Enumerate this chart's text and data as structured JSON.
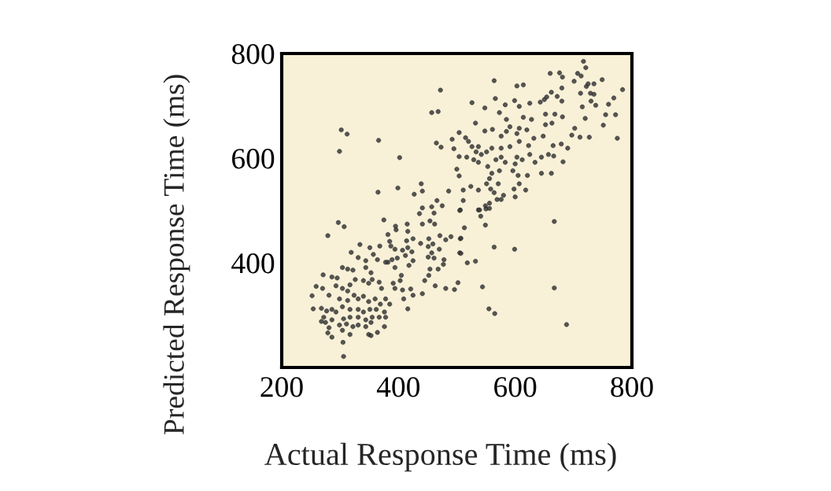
{
  "chart_data": {
    "type": "scatter",
    "xlabel": "Actual Response Time (ms)",
    "ylabel": "Predicted Response Time (ms)",
    "x": [
      472,
      457,
      468,
      302,
      312,
      299,
      366,
      402,
      465,
      473,
      492,
      495,
      504,
      504,
      500,
      504,
      439,
      441,
      427,
      399,
      365,
      486,
      466,
      475,
      457,
      441,
      717,
      721,
      660,
      676,
      681,
      707,
      713,
      701,
      749,
      735,
      722,
      725,
      784,
      564,
      603,
      614,
      680,
      712,
      729,
      735,
      730,
      738,
      769,
      760,
      715,
      755,
      772,
      751,
      775,
      720,
      526,
      566,
      548,
      583,
      599,
      607,
      625,
      643,
      650,
      654,
      662,
      672,
      680,
      573,
      585,
      614,
      628,
      652,
      668,
      681,
      652,
      663,
      532,
      548,
      561,
      585,
      591,
      607,
      620,
      576,
      603,
      632,
      648,
      702,
      697,
      711,
      727,
      515,
      520,
      526,
      537,
      533,
      542,
      551,
      560,
      576,
      591,
      607,
      623,
      517,
      529,
      537,
      511,
      524,
      537,
      553,
      560,
      556,
      551,
      558,
      564,
      569,
      571,
      573,
      583,
      576,
      567,
      596,
      600,
      603,
      612,
      605,
      607,
      598,
      600,
      618,
      621,
      625,
      634,
      645,
      657,
      666,
      645,
      662,
      682,
      690,
      679,
      665,
      580,
      576,
      556,
      549,
      537,
      511,
      506,
      436,
      461,
      441,
      454,
      462,
      375,
      297,
      307,
      279,
      395,
      415,
      416,
      396,
      382,
      385,
      387,
      394,
      407,
      412,
      398,
      389,
      382,
      394,
      425,
      418,
      425,
      414,
      416,
      423,
      438,
      452,
      451,
      459,
      471,
      481,
      490,
      470,
      457,
      451,
      461,
      478,
      477,
      468,
      454,
      452,
      445,
      506,
      505,
      463,
      481,
      496,
      502,
      334,
      351,
      368,
      319,
      331,
      344,
      357,
      364,
      378,
      304,
      313,
      322,
      344,
      353,
      271,
      286,
      295,
      293,
      259,
      270,
      252,
      281,
      304,
      317,
      326,
      340,
      349,
      355,
      367,
      371,
      391,
      403,
      405,
      394,
      407,
      421,
      425,
      441,
      409,
      416,
      313,
      324,
      331,
      340,
      349,
      360,
      369,
      378,
      385,
      313,
      299,
      304,
      317,
      331,
      340,
      351,
      362,
      376,
      378,
      367,
      355,
      344,
      331,
      317,
      306,
      293,
      286,
      277,
      268,
      254,
      268,
      275,
      286,
      299,
      311,
      322,
      331,
      344,
      353,
      281,
      279,
      286,
      304,
      317,
      349,
      353,
      364,
      376,
      305,
      306,
      272,
      505,
      539,
      550,
      556,
      541,
      549,
      513,
      507,
      507,
      518,
      532,
      564,
      599,
      667,
      544,
      667,
      555,
      565,
      688
    ],
    "values": [
      730,
      687,
      689,
      654,
      646,
      613,
      634,
      601,
      629,
      621,
      636,
      618,
      649,
      603,
      579,
      566,
      551,
      537,
      531,
      543,
      535,
      537,
      519,
      509,
      507,
      505,
      785,
      773,
      762,
      763,
      755,
      762,
      757,
      747,
      750,
      742,
      737,
      742,
      731,
      748,
      738,
      740,
      734,
      724,
      724,
      722,
      709,
      701,
      715,
      703,
      698,
      683,
      683,
      663,
      638,
      676,
      706,
      714,
      696,
      702,
      710,
      699,
      705,
      707,
      712,
      717,
      726,
      718,
      709,
      687,
      674,
      678,
      674,
      684,
      684,
      679,
      664,
      667,
      667,
      652,
      655,
      651,
      660,
      657,
      654,
      642,
      647,
      638,
      642,
      657,
      644,
      640,
      640,
      639,
      632,
      622,
      622,
      612,
      607,
      612,
      619,
      619,
      622,
      632,
      624,
      602,
      597,
      592,
      539,
      546,
      539,
      584,
      571,
      561,
      551,
      541,
      534,
      521,
      551,
      576,
      592,
      602,
      597,
      576,
      589,
      602,
      597,
      567,
      551,
      541,
      526,
      539,
      567,
      607,
      592,
      602,
      607,
      604,
      571,
      571,
      593,
      619,
      627,
      624,
      529,
      521,
      514,
      509,
      501,
      519,
      501,
      494,
      495,
      474,
      480,
      474,
      482,
      477,
      469,
      452,
      470,
      474,
      460,
      463,
      454,
      441,
      432,
      426,
      424,
      414,
      409,
      406,
      401,
      391,
      404,
      395,
      446,
      442,
      429,
      421,
      437,
      446,
      431,
      436,
      452,
      444,
      450,
      426,
      419,
      411,
      409,
      406,
      397,
      388,
      388,
      376,
      366,
      446,
      419,
      356,
      351,
      349,
      362,
      435,
      429,
      432,
      420,
      410,
      404,
      416,
      406,
      401,
      391,
      388,
      386,
      391,
      381,
      377,
      373,
      371,
      356,
      355,
      351,
      337,
      338,
      351,
      358,
      368,
      366,
      361,
      368,
      363,
      351,
      361,
      366,
      376,
      351,
      348,
      350,
      338,
      341,
      331,
      312,
      346,
      338,
      331,
      336,
      326,
      331,
      321,
      331,
      321,
      328,
      331,
      316,
      311,
      311,
      306,
      311,
      311,
      306,
      296,
      296,
      296,
      291,
      296,
      296,
      293,
      306,
      311,
      308,
      313,
      312,
      288,
      286,
      291,
      281,
      283,
      278,
      281,
      278,
      286,
      276,
      266,
      258,
      271,
      263,
      263,
      261,
      267,
      278,
      248,
      221,
      296,
      500,
      501,
      503,
      504,
      489,
      472,
      467,
      447,
      418,
      400,
      403,
      430,
      426,
      479,
      354,
      352,
      312,
      303,
      282
    ],
    "color": "#3a3a3a",
    "marker": "circle",
    "xlim": [
      200,
      800
    ],
    "ylim": [
      200,
      800
    ],
    "xticks": [
      200,
      400,
      600,
      800
    ],
    "yticks": [
      400,
      600,
      800
    ]
  }
}
